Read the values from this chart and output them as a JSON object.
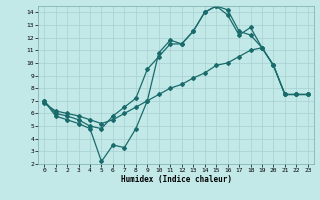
{
  "xlabel": "Humidex (Indice chaleur)",
  "bg_color": "#c2e8e8",
  "grid_color": "#a8d0d0",
  "line_color": "#1a6b6b",
  "xlim": [
    -0.5,
    23.5
  ],
  "ylim": [
    2,
    14.5
  ],
  "xticks": [
    0,
    1,
    2,
    3,
    4,
    5,
    6,
    7,
    8,
    9,
    10,
    11,
    12,
    13,
    14,
    15,
    16,
    17,
    18,
    19,
    20,
    21,
    22,
    23
  ],
  "yticks": [
    2,
    3,
    4,
    5,
    6,
    7,
    8,
    9,
    10,
    11,
    12,
    13,
    14
  ],
  "series1_x": [
    0,
    1,
    2,
    3,
    4,
    5,
    6,
    7,
    8,
    9,
    10,
    11,
    12,
    13,
    14,
    15,
    16,
    17,
    18,
    19,
    20,
    21,
    22,
    23
  ],
  "series1_y": [
    7.0,
    5.8,
    5.5,
    5.2,
    4.8,
    2.2,
    3.5,
    3.3,
    4.8,
    7.0,
    10.8,
    11.8,
    11.5,
    12.5,
    14.0,
    14.5,
    13.8,
    12.2,
    12.8,
    11.2,
    9.8,
    7.5,
    7.5,
    7.5
  ],
  "series2_x": [
    0,
    1,
    2,
    3,
    4,
    5,
    6,
    7,
    8,
    9,
    10,
    11,
    12,
    13,
    14,
    15,
    16,
    17,
    18,
    19,
    20,
    21,
    22,
    23
  ],
  "series2_y": [
    7.0,
    6.0,
    5.8,
    5.5,
    5.0,
    4.8,
    5.8,
    6.5,
    7.2,
    9.5,
    10.5,
    11.5,
    11.5,
    12.5,
    14.0,
    14.5,
    14.2,
    12.5,
    12.2,
    11.2,
    9.8,
    7.5,
    7.5,
    7.5
  ],
  "series3_x": [
    0,
    1,
    2,
    3,
    4,
    5,
    6,
    7,
    8,
    9,
    10,
    11,
    12,
    13,
    14,
    15,
    16,
    17,
    18,
    19,
    20,
    21,
    22,
    23
  ],
  "series3_y": [
    6.8,
    6.2,
    6.0,
    5.8,
    5.5,
    5.2,
    5.5,
    6.0,
    6.5,
    7.0,
    7.5,
    8.0,
    8.3,
    8.8,
    9.2,
    9.8,
    10.0,
    10.5,
    11.0,
    11.2,
    9.8,
    7.5,
    7.5,
    7.5
  ]
}
